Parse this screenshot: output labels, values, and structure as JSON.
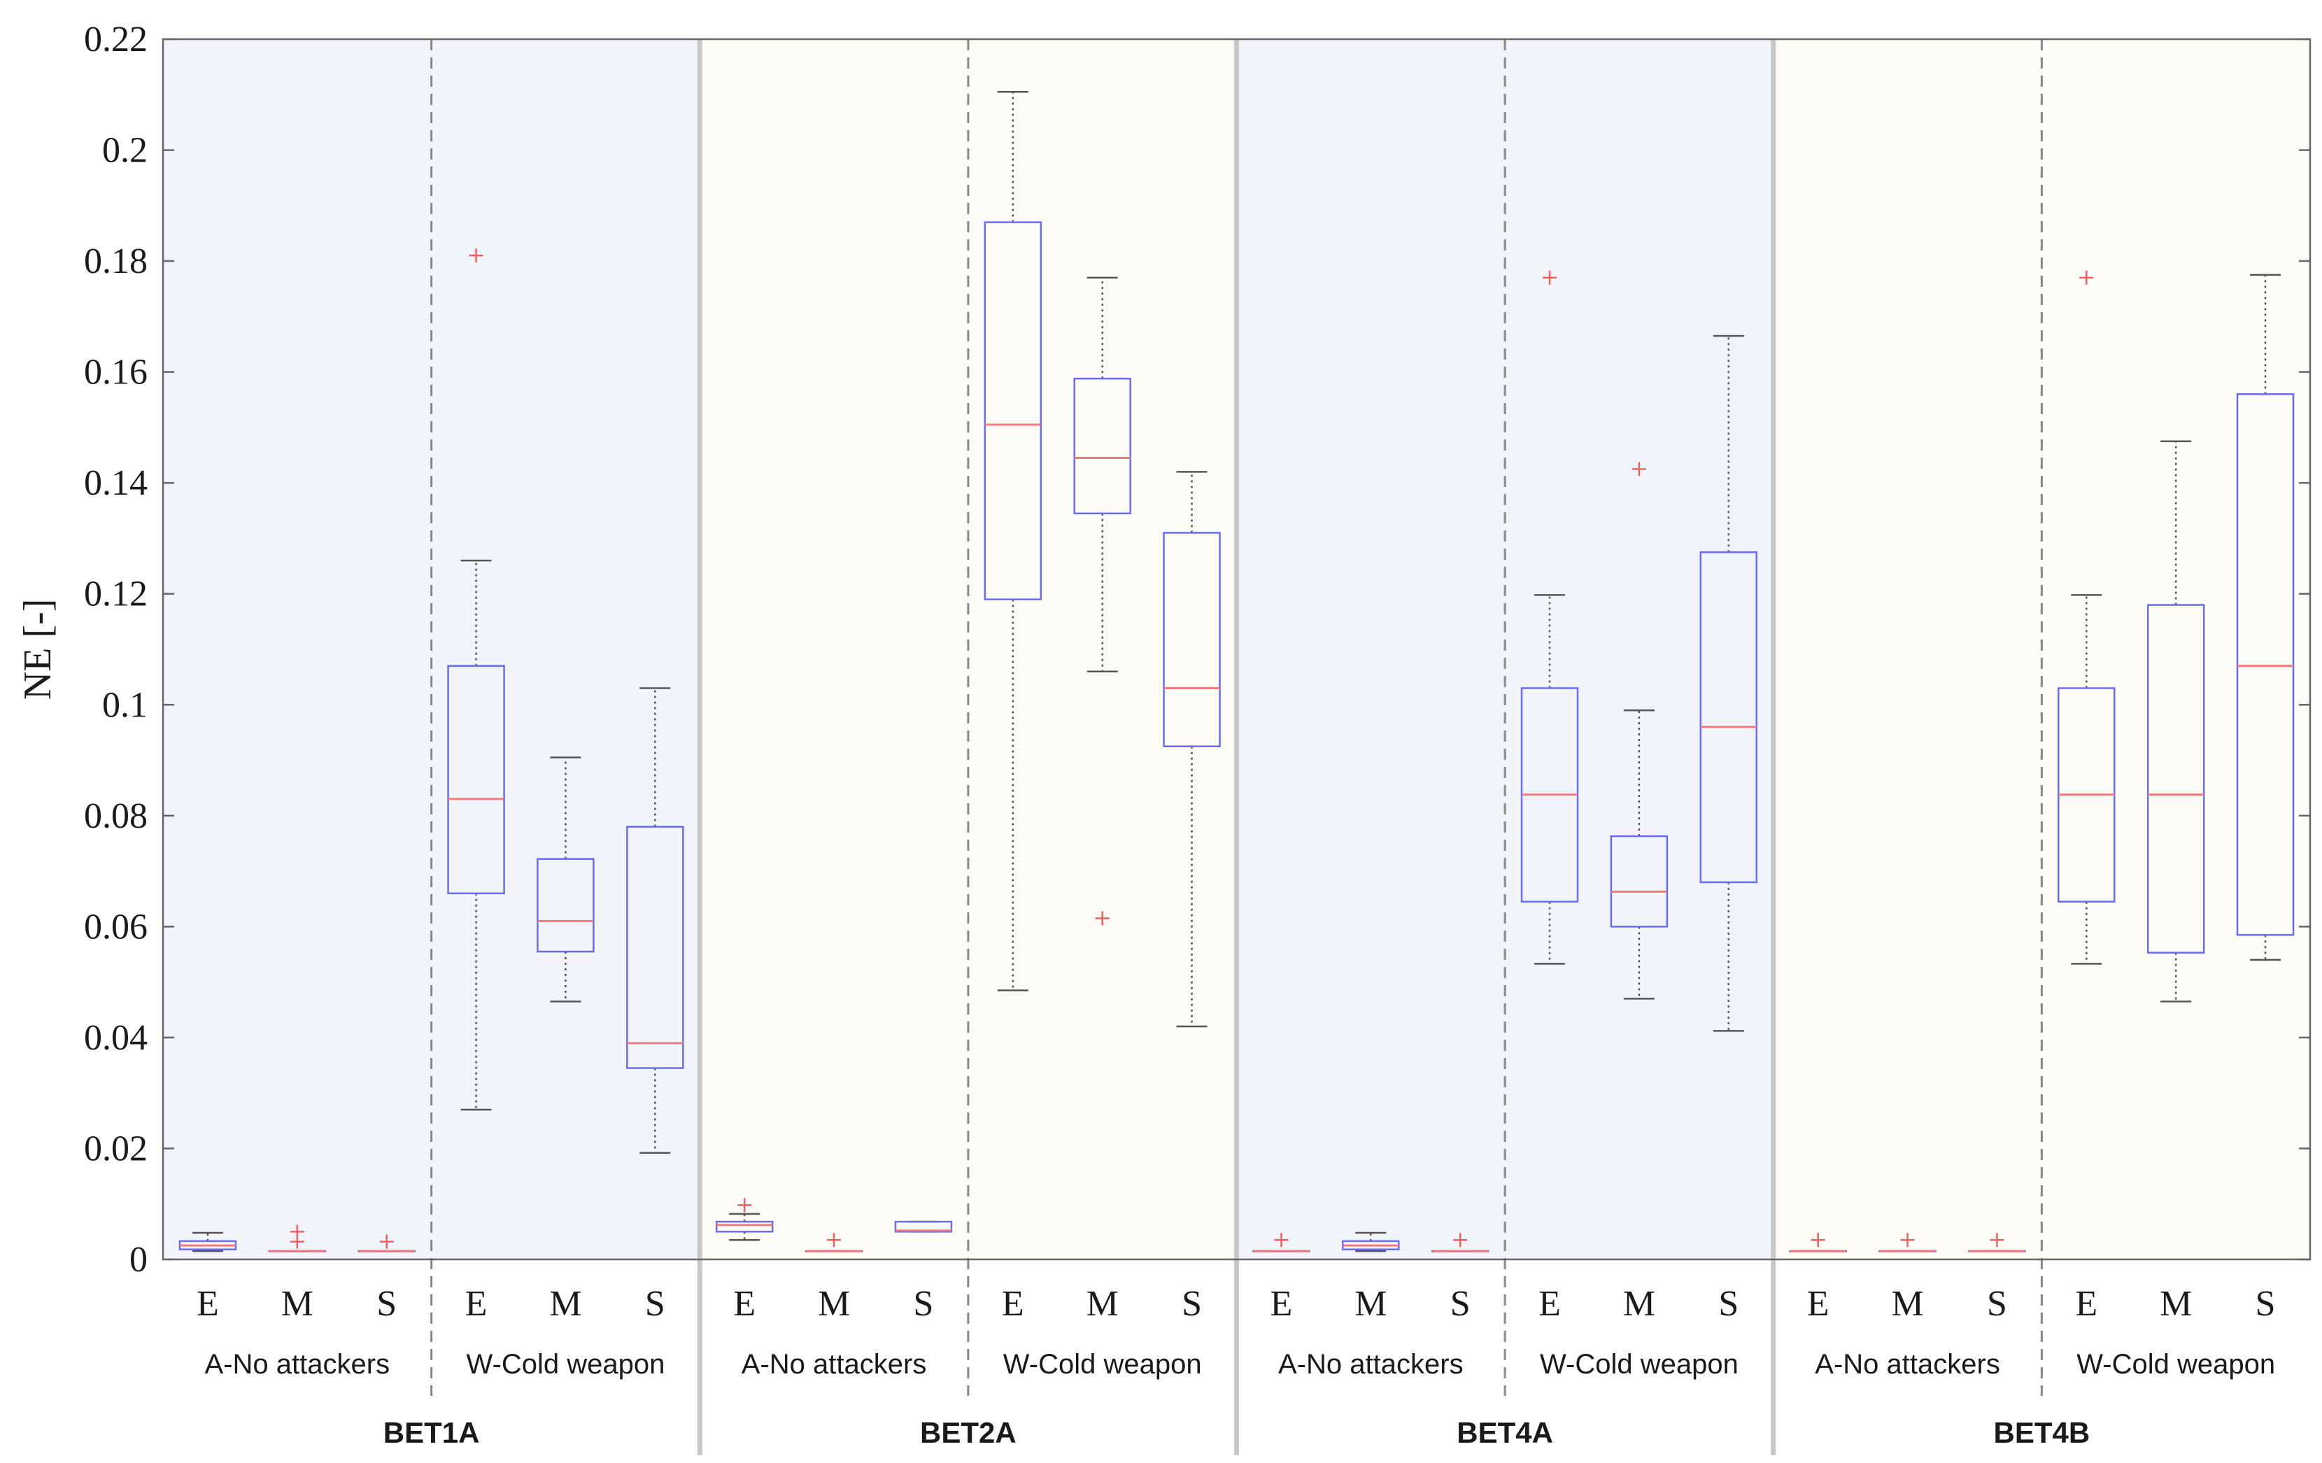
{
  "chart_data": {
    "type": "boxplot",
    "ylabel": "NE [-]",
    "ylim": [
      0,
      0.22
    ],
    "yticks": [
      0,
      0.02,
      0.04,
      0.06,
      0.08,
      0.1,
      0.12,
      0.14,
      0.16,
      0.18,
      0.2,
      0.22
    ],
    "ytick_labels": [
      "0",
      "0.02",
      "0.04",
      "0.06",
      "0.08",
      "0.1",
      "0.12",
      "0.14",
      "0.16",
      "0.18",
      "0.2",
      "0.22"
    ],
    "panels": [
      {
        "label": "BET1A",
        "shade": "blue",
        "groups": [
          {
            "label": "A-No attackers",
            "boxes": [
              {
                "cat": "E",
                "whisker_low": 0.0015,
                "q1": 0.0018,
                "median": 0.0025,
                "q3": 0.0033,
                "whisker_high": 0.0048,
                "outliers": []
              },
              {
                "cat": "M",
                "whisker_low": 0.0015,
                "q1": 0.0015,
                "median": 0.0015,
                "q3": 0.0015,
                "whisker_high": 0.0015,
                "outliers": [
                  0.0032,
                  0.005
                ]
              },
              {
                "cat": "S",
                "whisker_low": 0.0015,
                "q1": 0.0015,
                "median": 0.0015,
                "q3": 0.0015,
                "whisker_high": 0.0015,
                "outliers": [
                  0.0032
                ]
              }
            ]
          },
          {
            "label": "W-Cold weapon",
            "boxes": [
              {
                "cat": "E",
                "whisker_low": 0.027,
                "q1": 0.066,
                "median": 0.083,
                "q3": 0.107,
                "whisker_high": 0.126,
                "outliers": [
                  0.181
                ]
              },
              {
                "cat": "M",
                "whisker_low": 0.0465,
                "q1": 0.0555,
                "median": 0.061,
                "q3": 0.0722,
                "whisker_high": 0.0905,
                "outliers": []
              },
              {
                "cat": "S",
                "whisker_low": 0.0192,
                "q1": 0.0345,
                "median": 0.039,
                "q3": 0.078,
                "whisker_high": 0.103,
                "outliers": []
              }
            ]
          }
        ]
      },
      {
        "label": "BET2A",
        "shade": "cream",
        "groups": [
          {
            "label": "A-No attackers",
            "boxes": [
              {
                "cat": "E",
                "whisker_low": 0.0035,
                "q1": 0.005,
                "median": 0.0062,
                "q3": 0.0068,
                "whisker_high": 0.0082,
                "outliers": [
                  0.0098
                ]
              },
              {
                "cat": "M",
                "whisker_low": 0.0015,
                "q1": 0.0015,
                "median": 0.0015,
                "q3": 0.0015,
                "whisker_high": 0.0015,
                "outliers": [
                  0.0035
                ]
              },
              {
                "cat": "S",
                "whisker_low": 0.005,
                "q1": 0.005,
                "median": 0.0052,
                "q3": 0.0068,
                "whisker_high": 0.0068,
                "outliers": []
              }
            ]
          },
          {
            "label": "W-Cold weapon",
            "boxes": [
              {
                "cat": "E",
                "whisker_low": 0.0485,
                "q1": 0.119,
                "median": 0.1505,
                "q3": 0.187,
                "whisker_high": 0.2105,
                "outliers": []
              },
              {
                "cat": "M",
                "whisker_low": 0.106,
                "q1": 0.1345,
                "median": 0.1445,
                "q3": 0.1588,
                "whisker_high": 0.177,
                "outliers": [
                  0.0615
                ]
              },
              {
                "cat": "S",
                "whisker_low": 0.042,
                "q1": 0.0925,
                "median": 0.103,
                "q3": 0.131,
                "whisker_high": 0.142,
                "outliers": []
              }
            ]
          }
        ]
      },
      {
        "label": "BET4A",
        "shade": "blue",
        "groups": [
          {
            "label": "A-No attackers",
            "boxes": [
              {
                "cat": "E",
                "whisker_low": 0.0015,
                "q1": 0.0015,
                "median": 0.0015,
                "q3": 0.0015,
                "whisker_high": 0.0015,
                "outliers": [
                  0.0035
                ]
              },
              {
                "cat": "M",
                "whisker_low": 0.0015,
                "q1": 0.0018,
                "median": 0.0025,
                "q3": 0.0033,
                "whisker_high": 0.0048,
                "outliers": []
              },
              {
                "cat": "S",
                "whisker_low": 0.0015,
                "q1": 0.0015,
                "median": 0.0015,
                "q3": 0.0015,
                "whisker_high": 0.0015,
                "outliers": [
                  0.0035
                ]
              }
            ]
          },
          {
            "label": "W-Cold weapon",
            "boxes": [
              {
                "cat": "E",
                "whisker_low": 0.0533,
                "q1": 0.0645,
                "median": 0.0838,
                "q3": 0.103,
                "whisker_high": 0.1198,
                "outliers": [
                  0.177
                ]
              },
              {
                "cat": "M",
                "whisker_low": 0.047,
                "q1": 0.06,
                "median": 0.0663,
                "q3": 0.0763,
                "whisker_high": 0.099,
                "outliers": [
                  0.1425
                ]
              },
              {
                "cat": "S",
                "whisker_low": 0.0412,
                "q1": 0.068,
                "median": 0.096,
                "q3": 0.1275,
                "whisker_high": 0.1665,
                "outliers": []
              }
            ]
          }
        ]
      },
      {
        "label": "BET4B",
        "shade": "cream",
        "groups": [
          {
            "label": "A-No attackers",
            "boxes": [
              {
                "cat": "E",
                "whisker_low": 0.0015,
                "q1": 0.0015,
                "median": 0.0015,
                "q3": 0.0015,
                "whisker_high": 0.0015,
                "outliers": [
                  0.0035
                ]
              },
              {
                "cat": "M",
                "whisker_low": 0.0015,
                "q1": 0.0015,
                "median": 0.0015,
                "q3": 0.0015,
                "whisker_high": 0.0015,
                "outliers": [
                  0.0035
                ]
              },
              {
                "cat": "S",
                "whisker_low": 0.0015,
                "q1": 0.0015,
                "median": 0.0015,
                "q3": 0.0015,
                "whisker_high": 0.0015,
                "outliers": [
                  0.0035
                ]
              }
            ]
          },
          {
            "label": "W-Cold weapon",
            "boxes": [
              {
                "cat": "E",
                "whisker_low": 0.0533,
                "q1": 0.0645,
                "median": 0.0838,
                "q3": 0.103,
                "whisker_high": 0.1198,
                "outliers": [
                  0.177
                ]
              },
              {
                "cat": "M",
                "whisker_low": 0.0465,
                "q1": 0.0553,
                "median": 0.0838,
                "q3": 0.118,
                "whisker_high": 0.1475,
                "outliers": []
              },
              {
                "cat": "S",
                "whisker_low": 0.054,
                "q1": 0.0585,
                "median": 0.107,
                "q3": 0.156,
                "whisker_high": 0.1775,
                "outliers": []
              }
            ]
          }
        ]
      }
    ],
    "colors": {
      "box": "#6b6bf0",
      "median": "#f07b7b",
      "outlier": "#f06060",
      "whisker": "#555555",
      "shade_blue": "#f1f5fb",
      "shade_cream": "#fdfcf6",
      "axis": "#666666",
      "panel_divider": "#c8c8c8",
      "group_divider": "#888888"
    }
  }
}
